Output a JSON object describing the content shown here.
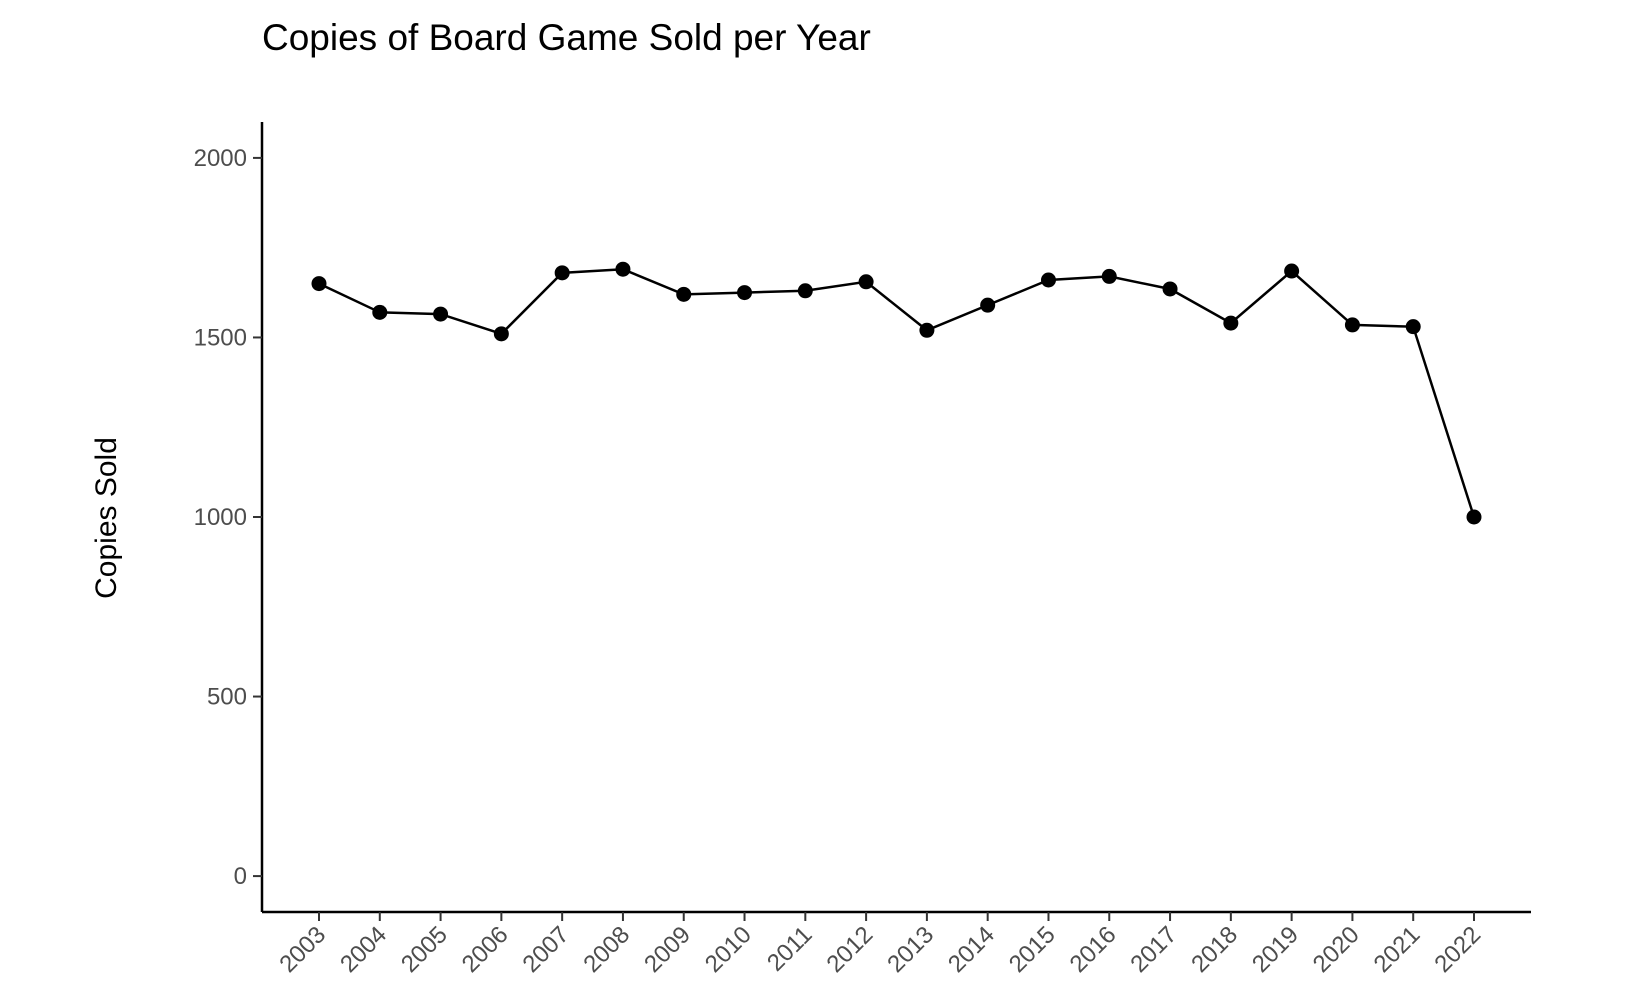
{
  "chart_data": {
    "type": "line",
    "title": "Copies of Board Game Sold per Year",
    "xlabel": "",
    "ylabel": "Copies Sold",
    "x": [
      "2003",
      "2004",
      "2005",
      "2006",
      "2007",
      "2008",
      "2009",
      "2010",
      "2011",
      "2012",
      "2013",
      "2014",
      "2015",
      "2016",
      "2017",
      "2018",
      "2019",
      "2020",
      "2021",
      "2022"
    ],
    "series": [
      {
        "values": [
          1650,
          1570,
          1565,
          1510,
          1680,
          1690,
          1620,
          1625,
          1630,
          1655,
          1520,
          1590,
          1660,
          1670,
          1635,
          1540,
          1685,
          1535,
          1530,
          1000
        ]
      }
    ],
    "ylim": [
      -100,
      2100
    ],
    "yticks": [
      "0",
      "500",
      "1000",
      "1500",
      "2000"
    ],
    "grid": false,
    "legend": "none",
    "line_color": "#000000",
    "point_color": "#000000"
  }
}
